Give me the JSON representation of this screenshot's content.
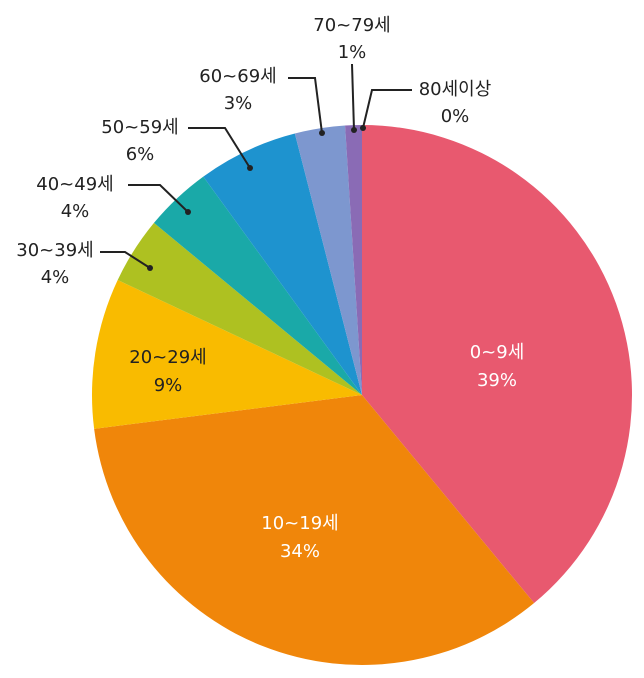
{
  "chart_data": {
    "type": "pie",
    "categories": [
      "0~9세",
      "10~19세",
      "20~29세",
      "30~39세",
      "40~49세",
      "50~59세",
      "60~69세",
      "70~79세",
      "80세이상"
    ],
    "values": [
      39,
      34,
      9,
      4,
      4,
      6,
      3,
      1,
      0
    ],
    "value_labels": [
      "39%",
      "34%",
      "9%",
      "4%",
      "4%",
      "6%",
      "3%",
      "1%",
      "0%"
    ],
    "colors": [
      "#e8596f",
      "#f0860a",
      "#f9bb00",
      "#aec121",
      "#1aa9a8",
      "#1e93cf",
      "#7d97cf",
      "#8a6bb5",
      "#5b5b9e"
    ]
  }
}
